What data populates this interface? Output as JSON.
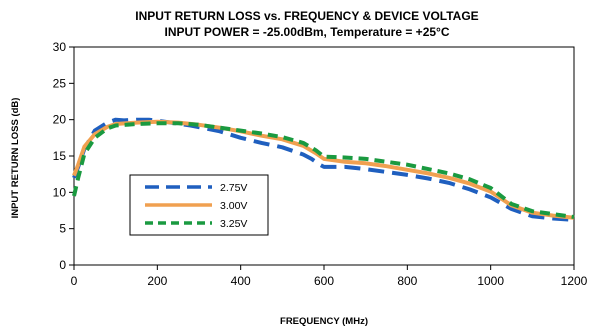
{
  "chart_data": {
    "type": "line",
    "title": "INPUT RETURN LOSS vs. FREQUENCY & DEVICE VOLTAGE",
    "subtitle": "INPUT POWER = -25.00dBm, Temperature = +25°C",
    "xlabel": "FREQUENCY (MHz)",
    "ylabel": "INPUT RETURN LOSS (dB)",
    "xlim": [
      0,
      1200
    ],
    "ylim": [
      0,
      30
    ],
    "xticks": [
      0,
      200,
      400,
      600,
      800,
      1000,
      1200
    ],
    "yticks": [
      0,
      5,
      10,
      15,
      20,
      25,
      30
    ],
    "grid": false,
    "legend_position": "lower-left",
    "series": [
      {
        "name": "2.75V",
        "color": "#1f5fbf",
        "dash": "long-dash",
        "points": [
          [
            0,
            12.0
          ],
          [
            10,
            13.5
          ],
          [
            25,
            16.0
          ],
          [
            50,
            18.5
          ],
          [
            80,
            19.6
          ],
          [
            100,
            20.0
          ],
          [
            120,
            19.9
          ],
          [
            150,
            20.0
          ],
          [
            180,
            20.0
          ],
          [
            220,
            19.7
          ],
          [
            280,
            19.2
          ],
          [
            350,
            18.4
          ],
          [
            400,
            17.5
          ],
          [
            450,
            16.8
          ],
          [
            500,
            16.2
          ],
          [
            550,
            15.2
          ],
          [
            570,
            14.6
          ],
          [
            590,
            13.8
          ],
          [
            600,
            13.5
          ],
          [
            650,
            13.5
          ],
          [
            700,
            13.2
          ],
          [
            750,
            12.8
          ],
          [
            800,
            12.4
          ],
          [
            850,
            11.9
          ],
          [
            900,
            11.3
          ],
          [
            950,
            10.4
          ],
          [
            1000,
            9.3
          ],
          [
            1050,
            7.7
          ],
          [
            1100,
            6.7
          ],
          [
            1150,
            6.4
          ],
          [
            1200,
            6.2
          ]
        ]
      },
      {
        "name": "3.00V",
        "color": "#f0a050",
        "dash": "solid",
        "points": [
          [
            0,
            12.3
          ],
          [
            10,
            13.8
          ],
          [
            25,
            16.3
          ],
          [
            50,
            18.0
          ],
          [
            80,
            19.0
          ],
          [
            100,
            19.4
          ],
          [
            150,
            19.6
          ],
          [
            200,
            19.7
          ],
          [
            250,
            19.6
          ],
          [
            300,
            19.3
          ],
          [
            350,
            18.9
          ],
          [
            400,
            18.4
          ],
          [
            450,
            17.8
          ],
          [
            500,
            17.3
          ],
          [
            550,
            16.4
          ],
          [
            580,
            15.4
          ],
          [
            600,
            14.6
          ],
          [
            650,
            14.2
          ],
          [
            700,
            14.0
          ],
          [
            750,
            13.6
          ],
          [
            800,
            13.1
          ],
          [
            850,
            12.6
          ],
          [
            900,
            12.0
          ],
          [
            950,
            11.2
          ],
          [
            1000,
            10.1
          ],
          [
            1050,
            8.2
          ],
          [
            1100,
            7.2
          ],
          [
            1150,
            6.8
          ],
          [
            1200,
            6.5
          ]
        ]
      },
      {
        "name": "3.25V",
        "color": "#1a9a40",
        "dash": "dash",
        "points": [
          [
            0,
            9.5
          ],
          [
            10,
            12.0
          ],
          [
            25,
            15.3
          ],
          [
            50,
            17.5
          ],
          [
            80,
            18.8
          ],
          [
            100,
            19.2
          ],
          [
            150,
            19.4
          ],
          [
            200,
            19.5
          ],
          [
            250,
            19.5
          ],
          [
            300,
            19.3
          ],
          [
            350,
            18.9
          ],
          [
            400,
            18.5
          ],
          [
            450,
            18.1
          ],
          [
            500,
            17.6
          ],
          [
            550,
            16.8
          ],
          [
            580,
            15.8
          ],
          [
            600,
            14.9
          ],
          [
            650,
            14.8
          ],
          [
            700,
            14.6
          ],
          [
            750,
            14.2
          ],
          [
            800,
            13.8
          ],
          [
            850,
            13.2
          ],
          [
            900,
            12.6
          ],
          [
            950,
            11.8
          ],
          [
            1000,
            10.6
          ],
          [
            1050,
            8.4
          ],
          [
            1100,
            7.4
          ],
          [
            1150,
            7.0
          ],
          [
            1200,
            6.6
          ]
        ]
      }
    ]
  }
}
